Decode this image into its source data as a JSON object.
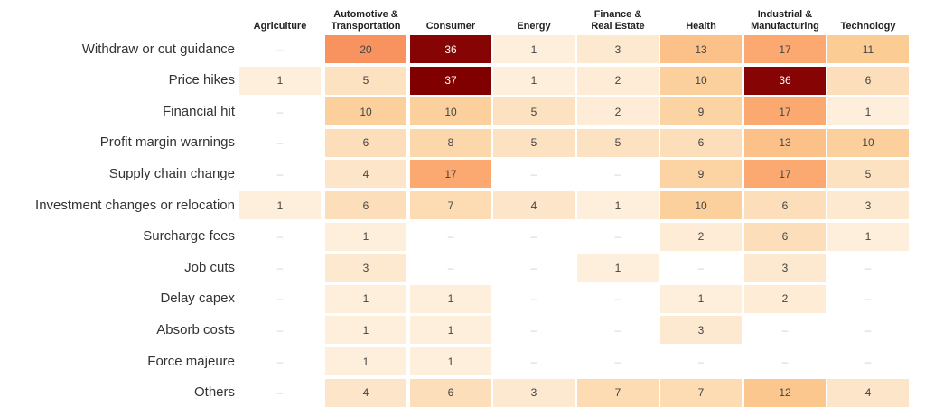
{
  "chart_data": {
    "type": "heatmap",
    "columns": [
      "Agriculture",
      "Automotive & Transportation",
      "Consumer",
      "Energy",
      "Finance & Real Estate",
      "Health",
      "Industrial & Manufacturing",
      "Technology"
    ],
    "column_lines": [
      [
        "Agriculture"
      ],
      [
        "Automotive &",
        "Transportation"
      ],
      [
        "Consumer"
      ],
      [
        "Energy"
      ],
      [
        "Finance &",
        "Real Estate"
      ],
      [
        "Health"
      ],
      [
        "Industrial &",
        "Manufacturing"
      ],
      [
        "Technology"
      ]
    ],
    "rows": [
      "Withdraw or cut guidance",
      "Price hikes",
      "Financial hit",
      "Profit margin warnings",
      "Supply chain change",
      "Investment changes or relocation",
      "Surcharge fees",
      "Job cuts",
      "Delay capex",
      "Absorb costs",
      "Force majeure",
      "Others"
    ],
    "values": [
      [
        null,
        20,
        36,
        1,
        3,
        13,
        17,
        11
      ],
      [
        1,
        5,
        37,
        1,
        2,
        10,
        36,
        6
      ],
      [
        null,
        10,
        10,
        5,
        2,
        9,
        17,
        1
      ],
      [
        null,
        6,
        8,
        5,
        5,
        6,
        13,
        10
      ],
      [
        null,
        4,
        17,
        null,
        null,
        9,
        17,
        5
      ],
      [
        1,
        6,
        7,
        4,
        1,
        10,
        6,
        3
      ],
      [
        null,
        1,
        null,
        null,
        null,
        2,
        6,
        1
      ],
      [
        null,
        3,
        null,
        null,
        1,
        null,
        3,
        null
      ],
      [
        null,
        1,
        1,
        null,
        null,
        1,
        2,
        null
      ],
      [
        null,
        1,
        1,
        null,
        null,
        3,
        null,
        null
      ],
      [
        null,
        1,
        1,
        null,
        null,
        null,
        null,
        null
      ],
      [
        null,
        4,
        6,
        3,
        7,
        7,
        12,
        4
      ]
    ],
    "empty_symbol": "–"
  }
}
